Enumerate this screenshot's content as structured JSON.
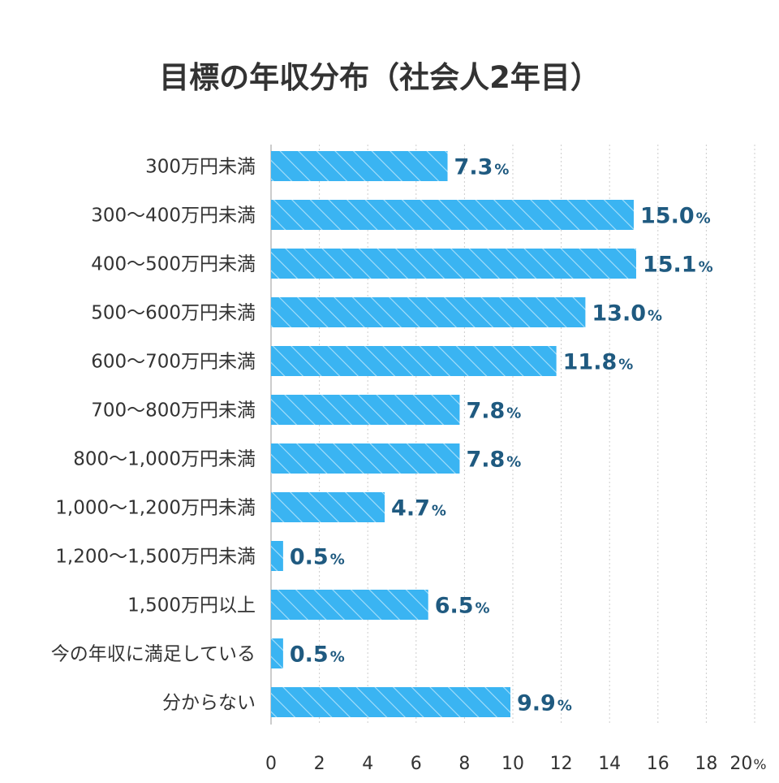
{
  "chart_data": {
    "type": "bar",
    "orientation": "horizontal",
    "title": "目標の年収分布（社会人2年目）",
    "categories": [
      "300万円未満",
      "300〜400万円未満",
      "400〜500万円未満",
      "500〜600万円未満",
      "600〜700万円未満",
      "700〜800万円未満",
      "800〜1,000万円未満",
      "1,000〜1,200万円未満",
      "1,200〜1,500万円未満",
      "1,500万円以上",
      "今の年収に満足している",
      "分からない"
    ],
    "values": [
      7.3,
      15.0,
      15.1,
      13.0,
      11.8,
      7.8,
      7.8,
      4.7,
      0.5,
      6.5,
      0.5,
      9.9
    ],
    "value_labels": [
      "7.3",
      "15.0",
      "15.1",
      "13.0",
      "11.8",
      "7.8",
      "7.8",
      "4.7",
      "0.5",
      "6.5",
      "0.5",
      "9.9"
    ],
    "value_unit": "%",
    "xlim": [
      0,
      20
    ],
    "xticks": [
      0,
      2,
      4,
      6,
      8,
      10,
      12,
      14,
      16,
      18,
      20
    ],
    "xtick_labels": [
      "0",
      "2",
      "4",
      "6",
      "8",
      "10",
      "12",
      "14",
      "16",
      "18",
      "20"
    ],
    "xtick_suffix": "%",
    "xlabel": "",
    "ylabel": "",
    "grid": "vertical dotted",
    "legend": "none",
    "colors": {
      "bar_fill": "#3ab4f2",
      "bar_stripe": "#a9e0fb",
      "value_text": "#1f5a80",
      "label_text": "#333333",
      "grid": "#cccccc",
      "axis": "#999999"
    }
  }
}
